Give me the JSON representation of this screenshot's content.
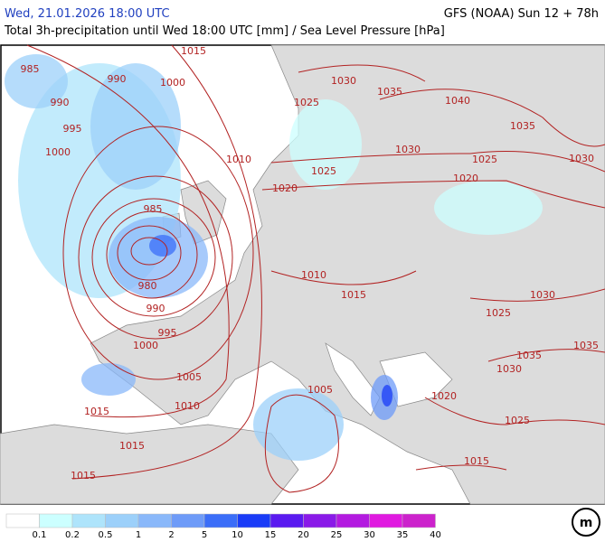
{
  "header": {
    "datetime": "Wed, 21.01.2026 18:00 UTC",
    "model": "GFS (NOAA) Sun 12 + 78h",
    "subtitle": "Total 3h-precipitation until Wed 18:00 UTC [mm] / Sea Level Pressure [hPa]"
  },
  "isobar_labels": [
    "985",
    "1015",
    "990",
    "990",
    "1000",
    "995",
    "1000",
    "1030",
    "1035",
    "1040",
    "1025",
    "1035",
    "1030",
    "1010",
    "1025",
    "1025",
    "1030",
    "1020",
    "1020",
    "985",
    "980",
    "990",
    "1010",
    "1015",
    "1030",
    "1025",
    "995",
    "1000",
    "1035",
    "1035",
    "1030",
    "1005",
    "1005",
    "1020",
    "1010",
    "1015",
    "1025",
    "1015",
    "1015",
    "1015"
  ],
  "legend": {
    "labels": [
      0.1,
      0.2,
      0.5,
      1,
      2,
      5,
      10,
      15,
      20,
      25,
      30,
      35,
      40
    ],
    "colors": [
      "#ffffff",
      "#ccffff",
      "#aee4fb",
      "#9cd0fa",
      "#8ab8fa",
      "#6e9bf8",
      "#3b6ef8",
      "#1a3cf7",
      "#5a1af0",
      "#8a1ae8",
      "#b31ae0",
      "#e01ae0",
      "#cc22cc"
    ]
  }
}
